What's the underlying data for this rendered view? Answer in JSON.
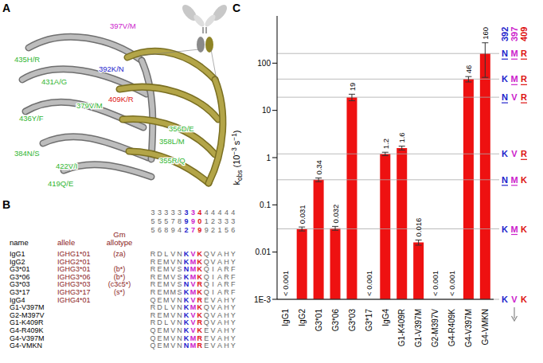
{
  "panel_letters": [
    "A",
    "B",
    "C"
  ],
  "structure": {
    "labels": [
      {
        "text": "435H/R",
        "color": "#2fb52f"
      },
      {
        "text": "431A/G",
        "color": "#2fb52f"
      },
      {
        "text": "379V/M",
        "color": "#2fb52f"
      },
      {
        "text": "397V/M",
        "color": "#cc22cc"
      },
      {
        "text": "392K/N",
        "color": "#2222cc"
      },
      {
        "text": "409K/R",
        "color": "#dd1111"
      },
      {
        "text": "436Y/F",
        "color": "#2fb52f"
      },
      {
        "text": "384N/S",
        "color": "#2fb52f"
      },
      {
        "text": "422V/I",
        "color": "#2fb52f"
      },
      {
        "text": "419Q/E",
        "color": "#2fb52f"
      },
      {
        "text": "356D/E",
        "color": "#2fb52f"
      },
      {
        "text": "358L/M",
        "color": "#2fb52f"
      },
      {
        "text": "355R/Q",
        "color": "#2fb52f"
      }
    ]
  },
  "alignment": {
    "headers": {
      "name": "name",
      "allele": "allele",
      "allotype": "Gm allotype"
    },
    "header_color": "#8b1a1a",
    "residues": [
      355,
      356,
      358,
      379,
      384,
      392,
      397,
      409,
      419,
      422,
      431,
      435,
      436
    ],
    "column_colors": [
      "#666666",
      "#666666",
      "#666666",
      "#666666",
      "#666666",
      "#2222cc",
      "#cc22cc",
      "#dd1111",
      "#666666",
      "#666666",
      "#666666",
      "#666666",
      "#666666"
    ],
    "rows": [
      {
        "name": "IgG1",
        "allele": "IGHG1*01",
        "allotype": "(za)",
        "sequence": "RDLVNKVKQVAHY"
      },
      {
        "name": "IgG2",
        "allele": "IGHG2*01",
        "allotype": null,
        "sequence": "REMVNKMKQVAHY"
      },
      {
        "name": "G3*01",
        "allele": "IGHG3*01",
        "allotype": "(b*)",
        "sequence": "REMVSNMKQIARF"
      },
      {
        "name": "G3*06",
        "allele": "IGHG3*06",
        "allotype": "(b*)",
        "sequence": "REMVSKMKQIARF"
      },
      {
        "name": "G3*03",
        "allele": "IGHG3*03",
        "allotype": "(c3c5*)",
        "sequence": "REMVSNVRQIARF"
      },
      {
        "name": "G3*17",
        "allele": "IGHG3*17",
        "allotype": "(s*)",
        "sequence": "REMMSKMKQIARF"
      },
      {
        "name": "IgG4",
        "allele": "IGHG4*01",
        "allotype": null,
        "sequence": "QEMVNKVREVAHY"
      },
      {
        "name": "G1-V397M",
        "allele": null,
        "allotype": null,
        "sequence": "RDLVNKMKQVAHY"
      },
      {
        "name": "G2-M397V",
        "allele": null,
        "allotype": null,
        "sequence": "REMVNKVKQVAHY"
      },
      {
        "name": "G1-K409R",
        "allele": null,
        "allotype": null,
        "sequence": "RDLVNKVRQVAHY"
      },
      {
        "name": "G4-R409K",
        "allele": null,
        "allotype": null,
        "sequence": "QEMVNKVKEVAHY"
      },
      {
        "name": "G4-V397M",
        "allele": null,
        "allotype": null,
        "sequence": "QEMVNKMREVAHY"
      },
      {
        "name": "G4-VMKN",
        "allele": null,
        "allotype": null,
        "sequence": "QEMVNNMREVAHY"
      }
    ]
  },
  "chart_data": {
    "type": "bar",
    "log": "y",
    "grid": false,
    "data_labels": true,
    "color": "#ee1111",
    "ylim": [
      0.001,
      1000
    ],
    "yticks": [
      {
        "value": 0.001,
        "label": "1E-3"
      },
      0.01,
      0.1,
      1,
      10,
      100
    ],
    "ylabel": [
      {
        "text": "k"
      },
      {
        "text": "obs",
        "sub": true
      },
      {
        "text": " (10"
      },
      {
        "text": "−3",
        "sup": true
      },
      {
        "text": " s"
      },
      {
        "text": "−1",
        "sup": true
      },
      {
        "text": ")"
      }
    ],
    "categories": [
      "IgG1",
      "IgG2",
      "G3*01",
      "G3*06",
      "G3*03",
      "G3*17",
      "IgG4",
      "G1-K409R",
      "G1-V397M",
      "G2-M397V",
      "G4-R409K",
      "G4-V397M",
      "G4-VMKN"
    ],
    "values": [
      null,
      0.031,
      0.34,
      0.032,
      19,
      null,
      1.2,
      1.6,
      0.016,
      null,
      null,
      46,
      160
    ],
    "value_labels": [
      "< 0.001",
      "0.031",
      "0.34",
      "0.032",
      "19",
      "< 0.001",
      "1.2",
      "1.6",
      "0.016",
      "< 0.001",
      "< 0.001",
      "46",
      "160"
    ],
    "errors": [
      null,
      0.003,
      0.03,
      0.003,
      3,
      null,
      0.1,
      0.15,
      0.002,
      null,
      null,
      6,
      110
    ],
    "motifs": {
      "residues": [
        "392",
        "397",
        "409"
      ],
      "colors": [
        "#2222cc",
        "#cc22cc",
        "#dd1111"
      ],
      "lines": [
        {
          "label": "NMR",
          "value": 160
        },
        {
          "label": "KMR",
          "value": 46
        },
        {
          "label": "NVR",
          "value": 19
        },
        {
          "label": "KVR",
          "value": 1.2
        },
        {
          "label": "NMK",
          "value": 0.34
        },
        {
          "label": "KMK",
          "value": 0.031
        },
        {
          "label": "KVK",
          "value": 0.001
        }
      ]
    }
  }
}
